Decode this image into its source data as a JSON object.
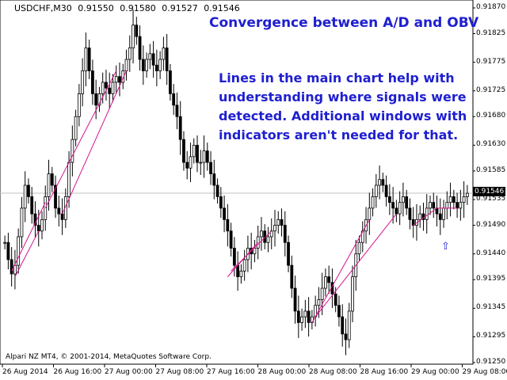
{
  "header": {
    "symbol": "USDCHF,M30",
    "open": "0.91550",
    "high": "0.91580",
    "low": "0.91527",
    "close": "0.91546"
  },
  "title": "Convergence between A/D and OBV",
  "note_lines": [
    "Lines in the main chart help with",
    "understanding where signals were",
    "detected. Additional windows with",
    "indicators aren't needed for that."
  ],
  "copyright": "Alpari NZ MT4, © 2001-2014, MetaQuotes Software Corp.",
  "current_price": "0.91546",
  "icons": {
    "signal_arrow": "up-arrow-outline-icon"
  },
  "colors": {
    "candle": "#000000",
    "signal_line": "#d4148c",
    "text_blue": "#1f1fd0"
  },
  "chart_data": {
    "type": "candlestick",
    "ylim": [
      0.9125,
      0.9187
    ],
    "yticks": [
      "0.91870",
      "0.91825",
      "0.91775",
      "0.91725",
      "0.91680",
      "0.91630",
      "0.91585",
      "0.91535",
      "0.91490",
      "0.91440",
      "0.91395",
      "0.91345",
      "0.91295",
      "0.91250"
    ],
    "xticks": [
      "26 Aug 2014",
      "26 Aug 16:00",
      "27 Aug 00:00",
      "27 Aug 08:00",
      "27 Aug 16:00",
      "28 Aug 00:00",
      "28 Aug 08:00",
      "28 Aug 16:00",
      "29 Aug 00:00",
      "29 Aug 08:00"
    ],
    "closes": [
      0.9146,
      0.9143,
      0.91405,
      0.9142,
      0.9147,
      0.9152,
      0.9156,
      0.9154,
      0.9151,
      0.9149,
      0.9148,
      0.915,
      0.9154,
      0.9158,
      0.9156,
      0.9152,
      0.9151,
      0.915,
      0.9154,
      0.916,
      0.9164,
      0.9168,
      0.9172,
      0.9176,
      0.918,
      0.9176,
      0.9172,
      0.917,
      0.9172,
      0.9174,
      0.9173,
      0.9172,
      0.9174,
      0.9175,
      0.9174,
      0.9176,
      0.9178,
      0.918,
      0.9184,
      0.9182,
      0.9178,
      0.9176,
      0.9178,
      0.9179,
      0.9177,
      0.9176,
      0.9178,
      0.918,
      0.9176,
      0.9172,
      0.917,
      0.9168,
      0.9164,
      0.916,
      0.9159,
      0.9161,
      0.9163,
      0.916,
      0.916,
      0.9162,
      0.916,
      0.9158,
      0.9156,
      0.9154,
      0.9152,
      0.915,
      0.9148,
      0.9145,
      0.9142,
      0.914,
      0.9141,
      0.9143,
      0.9145,
      0.9144,
      0.9145,
      0.9147,
      0.9148,
      0.9146,
      0.9147,
      0.9148,
      0.9149,
      0.915,
      0.9149,
      0.9146,
      0.9142,
      0.9138,
      0.9134,
      0.9132,
      0.9133,
      0.9134,
      0.9132,
      0.9133,
      0.9135,
      0.9136,
      0.9138,
      0.914,
      0.9139,
      0.9137,
      0.9135,
      0.9133,
      0.913,
      0.9129,
      0.9134,
      0.914,
      0.9144,
      0.9146,
      0.9148,
      0.915,
      0.9152,
      0.9154,
      0.9156,
      0.9157,
      0.9156,
      0.9154,
      0.9153,
      0.9152,
      0.9151,
      0.9153,
      0.9154,
      0.9152,
      0.915,
      0.9149,
      0.915,
      0.9151,
      0.915,
      0.9152,
      0.9153,
      0.9152,
      0.9151,
      0.915,
      0.9152,
      0.9153,
      0.9154,
      0.9153,
      0.9152,
      0.9153,
      0.9154,
      0.91546
    ]
  }
}
